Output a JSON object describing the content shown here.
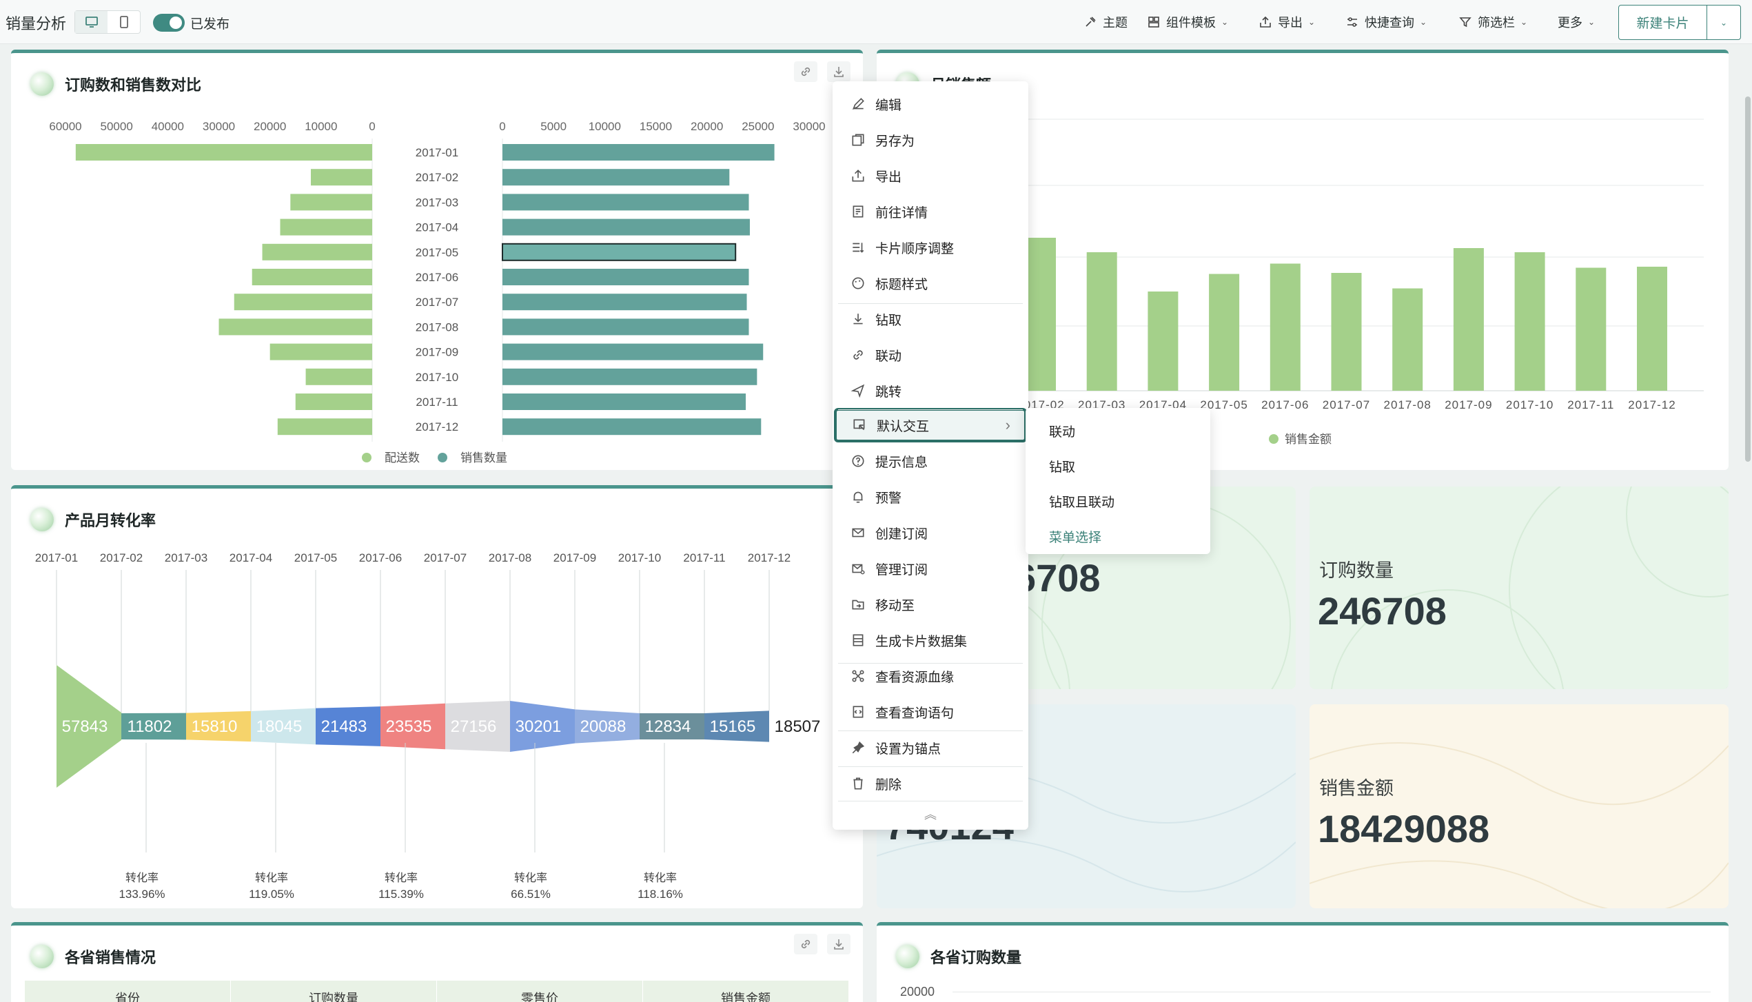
{
  "header": {
    "title": "销量分析",
    "publish_status": "已发布",
    "toolbar": [
      {
        "label": "主题",
        "icon": "theme-icon",
        "dropdown": false
      },
      {
        "label": "组件模板",
        "icon": "template-icon",
        "dropdown": true
      },
      {
        "label": "导出",
        "icon": "export-icon",
        "dropdown": true
      },
      {
        "label": "快捷查询",
        "icon": "quick-query-icon",
        "dropdown": true
      },
      {
        "label": "筛选栏",
        "icon": "filter-icon",
        "dropdown": true
      },
      {
        "label": "更多",
        "icon": "",
        "dropdown": true
      }
    ],
    "new_card_label": "新建卡片"
  },
  "cards": {
    "order_vs_sales": {
      "title": "订购数和销售数对比"
    },
    "monthly_sales": {
      "title": "月销售额"
    },
    "conversion": {
      "title": "产品月转化率"
    },
    "province_sales": {
      "title": "各省销售情况"
    },
    "province_orders": {
      "title": "各省订购数量"
    }
  },
  "metrics": [
    {
      "label": "",
      "value": "246708",
      "visible_value": "6708",
      "bg": "#e8f5ea"
    },
    {
      "label": "订购数量",
      "value": "246708",
      "bg": "#e8f5ea"
    },
    {
      "label": "",
      "value": "740124",
      "visible_value": "740124",
      "bg": "#e8f2f3"
    },
    {
      "label": "销售金额",
      "value": "18429088",
      "bg": "#fbf6e9"
    }
  ],
  "table": {
    "columns": [
      "省份",
      "订购数量",
      "零售价",
      "销售金额"
    ]
  },
  "context_menu": {
    "items": [
      {
        "label": "编辑",
        "icon": "edit-icon"
      },
      {
        "label": "另存为",
        "icon": "save-as-icon"
      },
      {
        "label": "导出",
        "icon": "export-icon"
      },
      {
        "label": "前往详情",
        "icon": "details-icon"
      },
      {
        "label": "卡片顺序调整",
        "icon": "reorder-icon"
      },
      {
        "label": "标题样式",
        "icon": "palette-icon"
      },
      {
        "label": "钻取",
        "icon": "drill-icon"
      },
      {
        "label": "联动",
        "icon": "link-icon"
      },
      {
        "label": "跳转",
        "icon": "jump-icon"
      },
      {
        "label": "默认交互",
        "icon": "interaction-icon"
      },
      {
        "label": "提示信息",
        "icon": "help-icon"
      },
      {
        "label": "预警",
        "icon": "bell-icon"
      },
      {
        "label": "创建订阅",
        "icon": "mail-icon"
      },
      {
        "label": "管理订阅",
        "icon": "mail-settings-icon"
      },
      {
        "label": "移动至",
        "icon": "move-icon"
      },
      {
        "label": "生成卡片数据集",
        "icon": "dataset-icon"
      },
      {
        "label": "查看资源血缘",
        "icon": "lineage-icon"
      },
      {
        "label": "查看查询语句",
        "icon": "query-icon"
      },
      {
        "label": "设置为锚点",
        "icon": "pin-icon"
      },
      {
        "label": "删除",
        "icon": "trash-icon"
      }
    ],
    "submenu": [
      "联动",
      "钻取",
      "钻取且联动",
      "菜单选择"
    ]
  },
  "chart_data": [
    {
      "type": "bar",
      "title": "订购数和销售数对比",
      "orientation": "horizontal-butterfly",
      "categories": [
        "2017-01",
        "2017-02",
        "2017-03",
        "2017-04",
        "2017-05",
        "2017-06",
        "2017-07",
        "2017-08",
        "2017-09",
        "2017-10",
        "2017-11",
        "2017-12"
      ],
      "series": [
        {
          "name": "配送数",
          "color": "#a4d08a",
          "side": "left",
          "axis_ticks": [
            60000,
            50000,
            40000,
            30000,
            20000,
            10000,
            0
          ],
          "values": [
            58000,
            12000,
            16000,
            18000,
            21500,
            23500,
            27000,
            30000,
            20000,
            13000,
            15000,
            18500
          ]
        },
        {
          "name": "销售数量",
          "color": "#63a29b",
          "side": "right",
          "axis_ticks": [
            0,
            5000,
            10000,
            15000,
            20000,
            25000,
            30000
          ],
          "values": [
            26600,
            22200,
            24100,
            24200,
            22800,
            24100,
            23900,
            24100,
            25500,
            24900,
            23800,
            25300
          ]
        }
      ],
      "highlighted_category": "2017-05",
      "legend": "bottom"
    },
    {
      "type": "bar",
      "title": "月销售额",
      "categories": [
        "2017-02",
        "2017-03",
        "2017-04",
        "2017-05",
        "2017-06",
        "2017-07",
        "2017-08",
        "2017-09",
        "2017-10",
        "2017-11",
        "2017-12"
      ],
      "visible_tick_labels": [
        "2017-02",
        "2017-03",
        "2017-04",
        "2017-05",
        "2017-06",
        "2017-07",
        "2017-08",
        "2017-09",
        "2017-10",
        "2017-11",
        "2017-12"
      ],
      "series": [
        {
          "name": "销售金额",
          "color": "#a4d08a",
          "values": [
            1480000,
            1340000,
            960000,
            1130000,
            1230000,
            1140000,
            990000,
            1380000,
            1340000,
            1190000,
            1200000
          ]
        }
      ],
      "legend": "bottom"
    },
    {
      "type": "funnel",
      "title": "产品月转化率",
      "categories": [
        "2017-01",
        "2017-02",
        "2017-03",
        "2017-04",
        "2017-05",
        "2017-06",
        "2017-07",
        "2017-08",
        "2017-09",
        "2017-10",
        "2017-11",
        "2017-12"
      ],
      "values": [
        57843,
        11802,
        15810,
        18045,
        21483,
        23535,
        27156,
        30201,
        20088,
        12834,
        15165,
        18507
      ],
      "colors": [
        "#a4d08a",
        "#5e9f98",
        "#f6d36b",
        "#cde7ec",
        "#5684d6",
        "#ef8381",
        "#dcdcdf",
        "#7c9edf",
        "#93aee0",
        "#6b8f9b",
        "#5d88b2",
        "#ffffff"
      ],
      "rate_label": "转化率",
      "rates": [
        "133.96%",
        "119.05%",
        "115.39%",
        "66.51%",
        "118.16%"
      ]
    }
  ]
}
